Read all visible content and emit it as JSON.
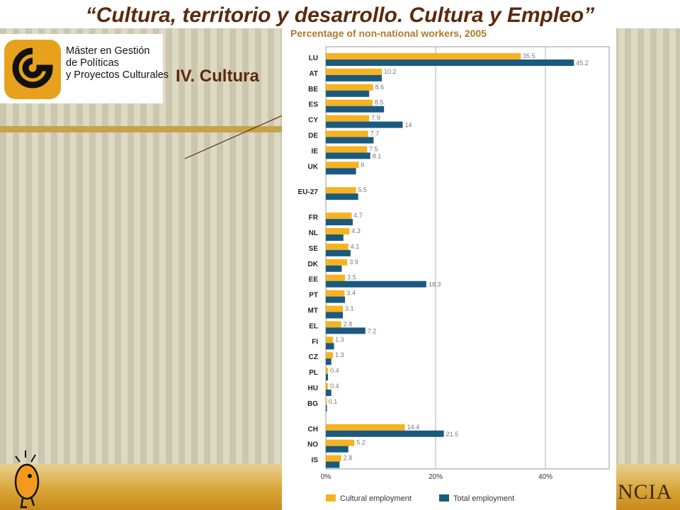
{
  "slide": {
    "title": "“Cultura, territorio y desarrollo. Cultura  y Empleo”",
    "section_heading": "IV. Cultura",
    "brand_tail": "NCIA"
  },
  "logo": {
    "lines": [
      "Máster en Gestión",
      "de Políticas",
      "y Proyectos Culturales"
    ],
    "color": "#e8a11c"
  },
  "chart_data": {
    "type": "bar",
    "orientation": "horizontal",
    "title": "Percentage of non-national workers, 2005",
    "categories": [
      "LU",
      "AT",
      "BE",
      "ES",
      "CY",
      "DE",
      "IE",
      "UK",
      "EU-27",
      "FR",
      "NL",
      "SE",
      "DK",
      "EE",
      "PT",
      "MT",
      "EL",
      "FI",
      "CZ",
      "PL",
      "HU",
      "BG",
      "CH",
      "NO",
      "IS"
    ],
    "series": [
      {
        "name": "Cultural employment",
        "color": "#f6b221",
        "values": [
          35.5,
          10.2,
          8.6,
          8.5,
          7.9,
          7.7,
          7.5,
          6,
          5.5,
          4.7,
          4.3,
          4.1,
          3.9,
          3.5,
          3.4,
          3.1,
          2.8,
          1.3,
          1.3,
          0.4,
          0.4,
          0.1,
          14.4,
          5.2,
          2.8
        ],
        "labels": [
          "35.5",
          "10.2",
          "8.6",
          "8.5",
          "7.9",
          "7.7",
          "7.5",
          "6",
          "5.5",
          "4.7",
          "4.3",
          "4.1",
          "3.9",
          "3.5",
          "3.4",
          "3.1",
          "2.8",
          "1.3",
          "1.3",
          "0.4",
          "0.4",
          "0.1",
          "14.4",
          "5.2",
          "2.8"
        ]
      },
      {
        "name": "Total employment",
        "color": "#1b5a7e",
        "values": [
          45.2,
          10.2,
          7.9,
          10.6,
          14,
          8.7,
          8.1,
          5.5,
          5.9,
          4.9,
          3.2,
          4.5,
          2.9,
          18.3,
          3.5,
          3.1,
          7.2,
          1.5,
          1,
          0.4,
          1,
          0.2,
          21.5,
          4.1,
          2.5
        ],
        "labels": [
          "45.2",
          "",
          "",
          "",
          "14",
          "",
          "8.1",
          "",
          "",
          "",
          "",
          "",
          "",
          "18.3",
          "",
          "",
          "7.2",
          "",
          "",
          "",
          "",
          "",
          "21.5",
          "",
          ""
        ]
      }
    ],
    "x_ticks": [
      "0%",
      "20%",
      "40%"
    ],
    "xlim": [
      0,
      50
    ],
    "grid": true,
    "legend": "bottom"
  }
}
